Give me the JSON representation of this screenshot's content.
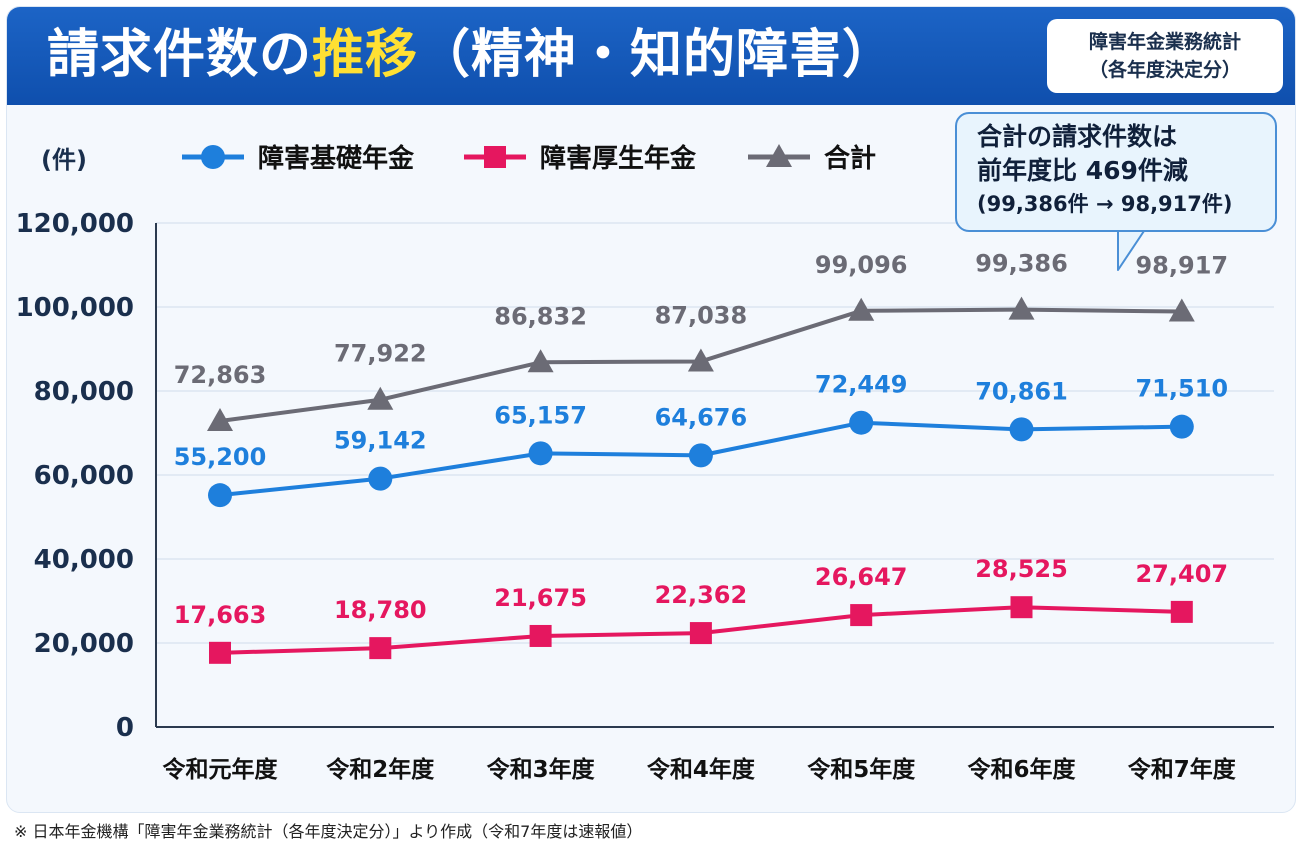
{
  "header": {
    "title_main": "請求件数の",
    "title_highlight": "推移",
    "title_tail": "（精神・知的障害）",
    "badge_line1": "障害年金業務統計",
    "badge_line2": "（各年度決定分）"
  },
  "callout": {
    "line1": "合計の請求件数は",
    "line2": "前年度比 469件減",
    "line3": "(99,386件 → 98,917件)"
  },
  "footnote": "※ 日本年金機構「障害年金業務統計（各年度決定分）」より作成（令和7年度は速報値）",
  "colors": {
    "header_bg": "#1560c2",
    "title_highlight": "#ffe033",
    "basic": "#1e7fdc",
    "employee": "#e5175f",
    "total": "#6b6b75",
    "axis_text": "#1a2f4d"
  },
  "chart_data": {
    "type": "line",
    "title": "請求件数の推移（精神・知的障害）",
    "ylabel": "(件)",
    "xlabel": "",
    "ylim": [
      0,
      120000
    ],
    "yticks": [
      0,
      20000,
      40000,
      60000,
      80000,
      100000,
      120000
    ],
    "ytick_labels": [
      "0",
      "20,000",
      "40,000",
      "60,000",
      "80,000",
      "100,000",
      "120,000"
    ],
    "grid": true,
    "legend_position": "top-left",
    "categories": [
      "令和元年度",
      "令和2年度",
      "令和3年度",
      "令和4年度",
      "令和5年度",
      "令和6年度",
      "令和7年度"
    ],
    "series": [
      {
        "name": "障害基礎年金",
        "marker": "circle",
        "color": "#1e7fdc",
        "values": [
          55200,
          59142,
          65157,
          64676,
          72449,
          70861,
          71510
        ],
        "labels": [
          "55,200",
          "59,142",
          "65,157",
          "64,676",
          "72,449",
          "70,861",
          "71,510"
        ]
      },
      {
        "name": "障害厚生年金",
        "marker": "square",
        "color": "#e5175f",
        "values": [
          17663,
          18780,
          21675,
          22362,
          26647,
          28525,
          27407
        ],
        "labels": [
          "17,663",
          "18,780",
          "21,675",
          "22,362",
          "26,647",
          "28,525",
          "27,407"
        ]
      },
      {
        "name": "合計",
        "marker": "triangle",
        "color": "#6b6b75",
        "values": [
          72863,
          77922,
          86832,
          87038,
          99096,
          99386,
          98917
        ],
        "labels": [
          "72,863",
          "77,922",
          "86,832",
          "87,038",
          "99,096",
          "99,386",
          "98,917"
        ]
      }
    ]
  }
}
